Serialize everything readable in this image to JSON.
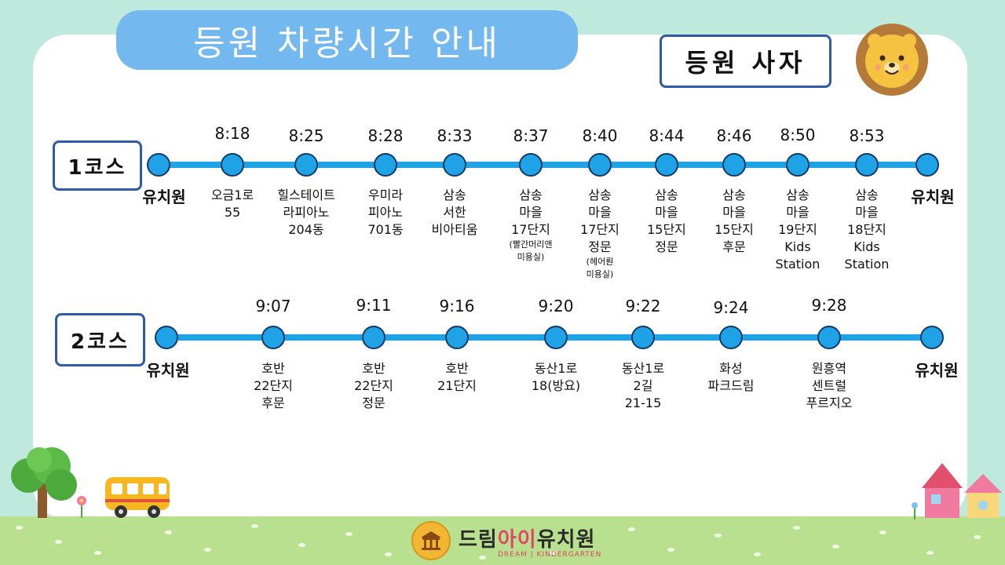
{
  "title": "등원 차량시간 안내",
  "subtitle": "등원 사자",
  "courses": [
    {
      "label": "1코스",
      "start": "유치원",
      "end": "유치원",
      "stops": [
        {
          "time": "8:18",
          "lines": [
            "오금1로",
            "55"
          ]
        },
        {
          "time": "8:25",
          "lines": [
            "힐스테이트",
            "라피아노",
            "204동"
          ]
        },
        {
          "time": "8:28",
          "lines": [
            "우미라",
            "피아노",
            "701동"
          ]
        },
        {
          "time": "8:33",
          "lines": [
            "삼송",
            "서한",
            "비아티움"
          ]
        },
        {
          "time": "8:37",
          "lines": [
            "삼송",
            "마을",
            "17단지"
          ],
          "note": [
            "(빨간머리앤",
            "미용실)"
          ]
        },
        {
          "time": "8:40",
          "lines": [
            "삼송",
            "마을",
            "17단지",
            "정문"
          ],
          "note": [
            "(헤어뤈",
            "미용실)"
          ]
        },
        {
          "time": "8:44",
          "lines": [
            "삼송",
            "마을",
            "15단지",
            "정문"
          ]
        },
        {
          "time": "8:46",
          "lines": [
            "삼송",
            "마을",
            "15단지",
            "후문"
          ]
        },
        {
          "time": "8:50",
          "lines": [
            "삼송",
            "마을",
            "19단지",
            "Kids",
            "Station"
          ]
        },
        {
          "time": "8:53",
          "lines": [
            "삼송",
            "마을",
            "18단지",
            "Kids",
            "Station"
          ]
        }
      ]
    },
    {
      "label": "2코스",
      "start": "유치원",
      "end": "유치원",
      "stops": [
        {
          "time": "9:07",
          "lines": [
            "호반",
            "22단지",
            "후문"
          ]
        },
        {
          "time": "9:11",
          "lines": [
            "호반",
            "22단지",
            "정문"
          ]
        },
        {
          "time": "9:16",
          "lines": [
            "호반",
            "21단지"
          ]
        },
        {
          "time": "9:20",
          "lines": [
            "동산1로",
            "18(방요)"
          ]
        },
        {
          "time": "9:22",
          "lines": [
            "동산1로",
            "2길",
            "21-15"
          ]
        },
        {
          "time": "9:24",
          "lines": [
            "화성",
            "파크드림"
          ]
        },
        {
          "time": "9:28",
          "lines": [
            "원흥역",
            "센트럴",
            "푸르지오"
          ]
        }
      ]
    }
  ],
  "footer": {
    "name_part1": "드림",
    "name_part2": "아이",
    "name_part3": "유치원",
    "english": "DREAM | KINDERGARTEN"
  },
  "colors": {
    "background": "#bfe9dc",
    "title_pill": "#73b8ef",
    "route_line": "#1fa3e6",
    "box_border": "#2f5aa6",
    "grass": "#b9e08e"
  },
  "icons": [
    "lion-icon",
    "tree-icon",
    "school-bus-icon",
    "house-icon",
    "flower-icon"
  ]
}
